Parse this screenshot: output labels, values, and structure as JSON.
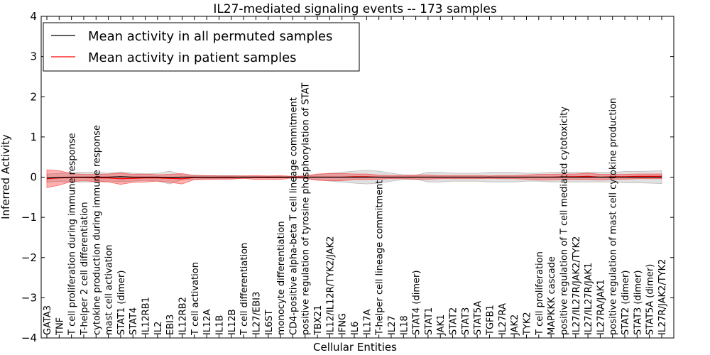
{
  "chart_data": {
    "type": "line",
    "title": "IL27-mediated signaling events -- 173 samples",
    "xlabel": "Cellular Entities",
    "ylabel": "Inferred Activity",
    "ylim": [
      -4,
      4
    ],
    "yticks": [
      -4,
      -3,
      -2,
      -1,
      0,
      1,
      2,
      3,
      4
    ],
    "ytick_labels": [
      "−4",
      "−3",
      "−2",
      "−1",
      "0",
      "1",
      "2",
      "3",
      "4"
    ],
    "legend_position": "top-left",
    "colors": {
      "permuted": "#000000",
      "patient": "#ff0000",
      "permuted_band": "#aaaaaa",
      "patient_band": "#ff0000"
    },
    "categories": [
      "GATA3",
      "TNF",
      "T cell proliferation during immune response",
      "T-helper 2 cell differentiation",
      "cytokine production during immune response",
      "mast cell activation",
      "STAT1 (dimer)",
      "STAT4",
      "IL12RB1",
      "IL2",
      "EBI3",
      "IL12RB2",
      "T cell activation",
      "IL12A",
      "IL1B",
      "IL12B",
      "T cell differentiation",
      "IL27/EBI3",
      "IL6ST",
      "monocyte differentiation",
      "CD4-positive alpha-beta T cell lineage commitment",
      "positive regulation of tyrosine phosphorylation of STAT",
      "TBX21",
      "IL12/IL12R/TYK2/JAK2",
      "IFNG",
      "IL6",
      "IL17A",
      "T-helper cell lineage commitment",
      "IL27",
      "IL18",
      "STAT4 (dimer)",
      "STAT1",
      "JAK1",
      "STAT2",
      "STAT3",
      "STAT5A",
      "TGFB1",
      "IL27RA",
      "JAK2",
      "TYK2",
      "T cell proliferation",
      "MAPKKK cascade",
      "positive regulation of T cell mediated cytotoxicity",
      "IL27/IL27R/JAK2/TYK2",
      "IL27/IL27R/JAK1",
      "IL27RA/JAK1",
      "positive regulation of mast cell cytokine production",
      "STAT2 (dimer)",
      "STAT3 (dimer)",
      "STAT5A (dimer)",
      "IL27R/JAK2/TYK2"
    ],
    "series": [
      {
        "name": "Mean activity in all permuted samples",
        "values": [
          -0.02,
          -0.01,
          0.0,
          0.0,
          0.0,
          0.0,
          0.01,
          0.0,
          0.0,
          0.0,
          -0.01,
          0.0,
          0.0,
          0.0,
          0.0,
          0.0,
          0.0,
          0.0,
          0.0,
          0.0,
          0.0,
          0.0,
          0.0,
          0.0,
          0.0,
          0.0,
          0.0,
          0.0,
          0.0,
          0.0,
          0.0,
          0.0,
          0.0,
          0.0,
          0.0,
          0.0,
          0.0,
          0.0,
          0.0,
          0.0,
          0.0,
          0.0,
          0.0,
          0.0,
          0.0,
          0.0,
          0.0,
          0.0,
          0.0,
          0.0,
          0.0
        ],
        "std": [
          0.1,
          0.1,
          0.12,
          0.12,
          0.12,
          0.1,
          0.12,
          0.1,
          0.08,
          0.1,
          0.16,
          0.06,
          0.05,
          0.04,
          0.04,
          0.04,
          0.03,
          0.02,
          0.02,
          0.02,
          0.02,
          0.03,
          0.06,
          0.1,
          0.12,
          0.15,
          0.17,
          0.15,
          0.1,
          0.06,
          0.05,
          0.12,
          0.12,
          0.1,
          0.1,
          0.1,
          0.12,
          0.12,
          0.12,
          0.1,
          0.1,
          0.12,
          0.12,
          0.12,
          0.12,
          0.12,
          0.12,
          0.14,
          0.14,
          0.15,
          0.16
        ]
      },
      {
        "name": "Mean activity in patient samples",
        "values": [
          -0.04,
          -0.02,
          -0.01,
          -0.01,
          -0.02,
          -0.02,
          -0.04,
          -0.03,
          -0.02,
          -0.02,
          -0.03,
          -0.04,
          -0.01,
          -0.01,
          -0.01,
          -0.01,
          0.0,
          -0.01,
          -0.01,
          -0.01,
          0.0,
          0.0,
          0.0,
          0.0,
          0.0,
          0.01,
          0.01,
          0.0,
          0.0,
          0.0,
          0.0,
          0.0,
          0.0,
          0.0,
          0.0,
          0.0,
          0.0,
          0.0,
          0.0,
          0.0,
          0.0,
          0.0,
          0.01,
          0.01,
          0.02,
          0.0,
          0.01,
          0.01,
          0.02,
          0.02,
          0.02
        ],
        "std": [
          0.22,
          0.18,
          0.1,
          0.08,
          0.09,
          0.1,
          0.14,
          0.1,
          0.1,
          0.08,
          0.1,
          0.13,
          0.05,
          0.05,
          0.04,
          0.04,
          0.03,
          0.05,
          0.04,
          0.05,
          0.02,
          0.03,
          0.08,
          0.09,
          0.09,
          0.07,
          0.07,
          0.05,
          0.04,
          0.04,
          0.05,
          0.05,
          0.04,
          0.04,
          0.04,
          0.04,
          0.03,
          0.04,
          0.04,
          0.05,
          0.07,
          0.07,
          0.07,
          0.07,
          0.08,
          0.07,
          0.06,
          0.06,
          0.06,
          0.06,
          0.06
        ]
      }
    ]
  }
}
